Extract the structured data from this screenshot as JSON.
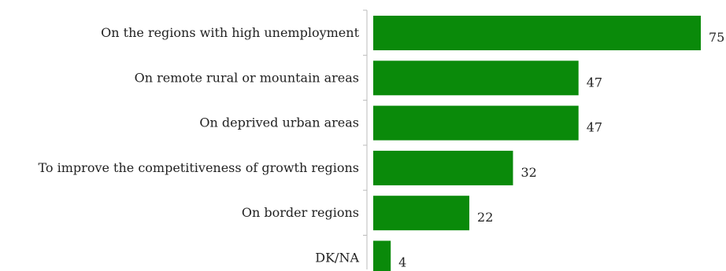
{
  "chart_data": {
    "type": "bar",
    "orientation": "horizontal",
    "categories": [
      "On the regions with high unemployment",
      "On remote rural or mountain areas",
      "On deprived urban areas",
      "To improve the competitiveness of growth regions",
      "On border regions",
      "DK/NA"
    ],
    "values": [
      75,
      47,
      47,
      32,
      22,
      4
    ],
    "xlim": [
      0,
      75
    ],
    "bar_color": "#0a8a0a",
    "axis_color": "#bbbbbb",
    "grid": false,
    "legend": "none"
  }
}
